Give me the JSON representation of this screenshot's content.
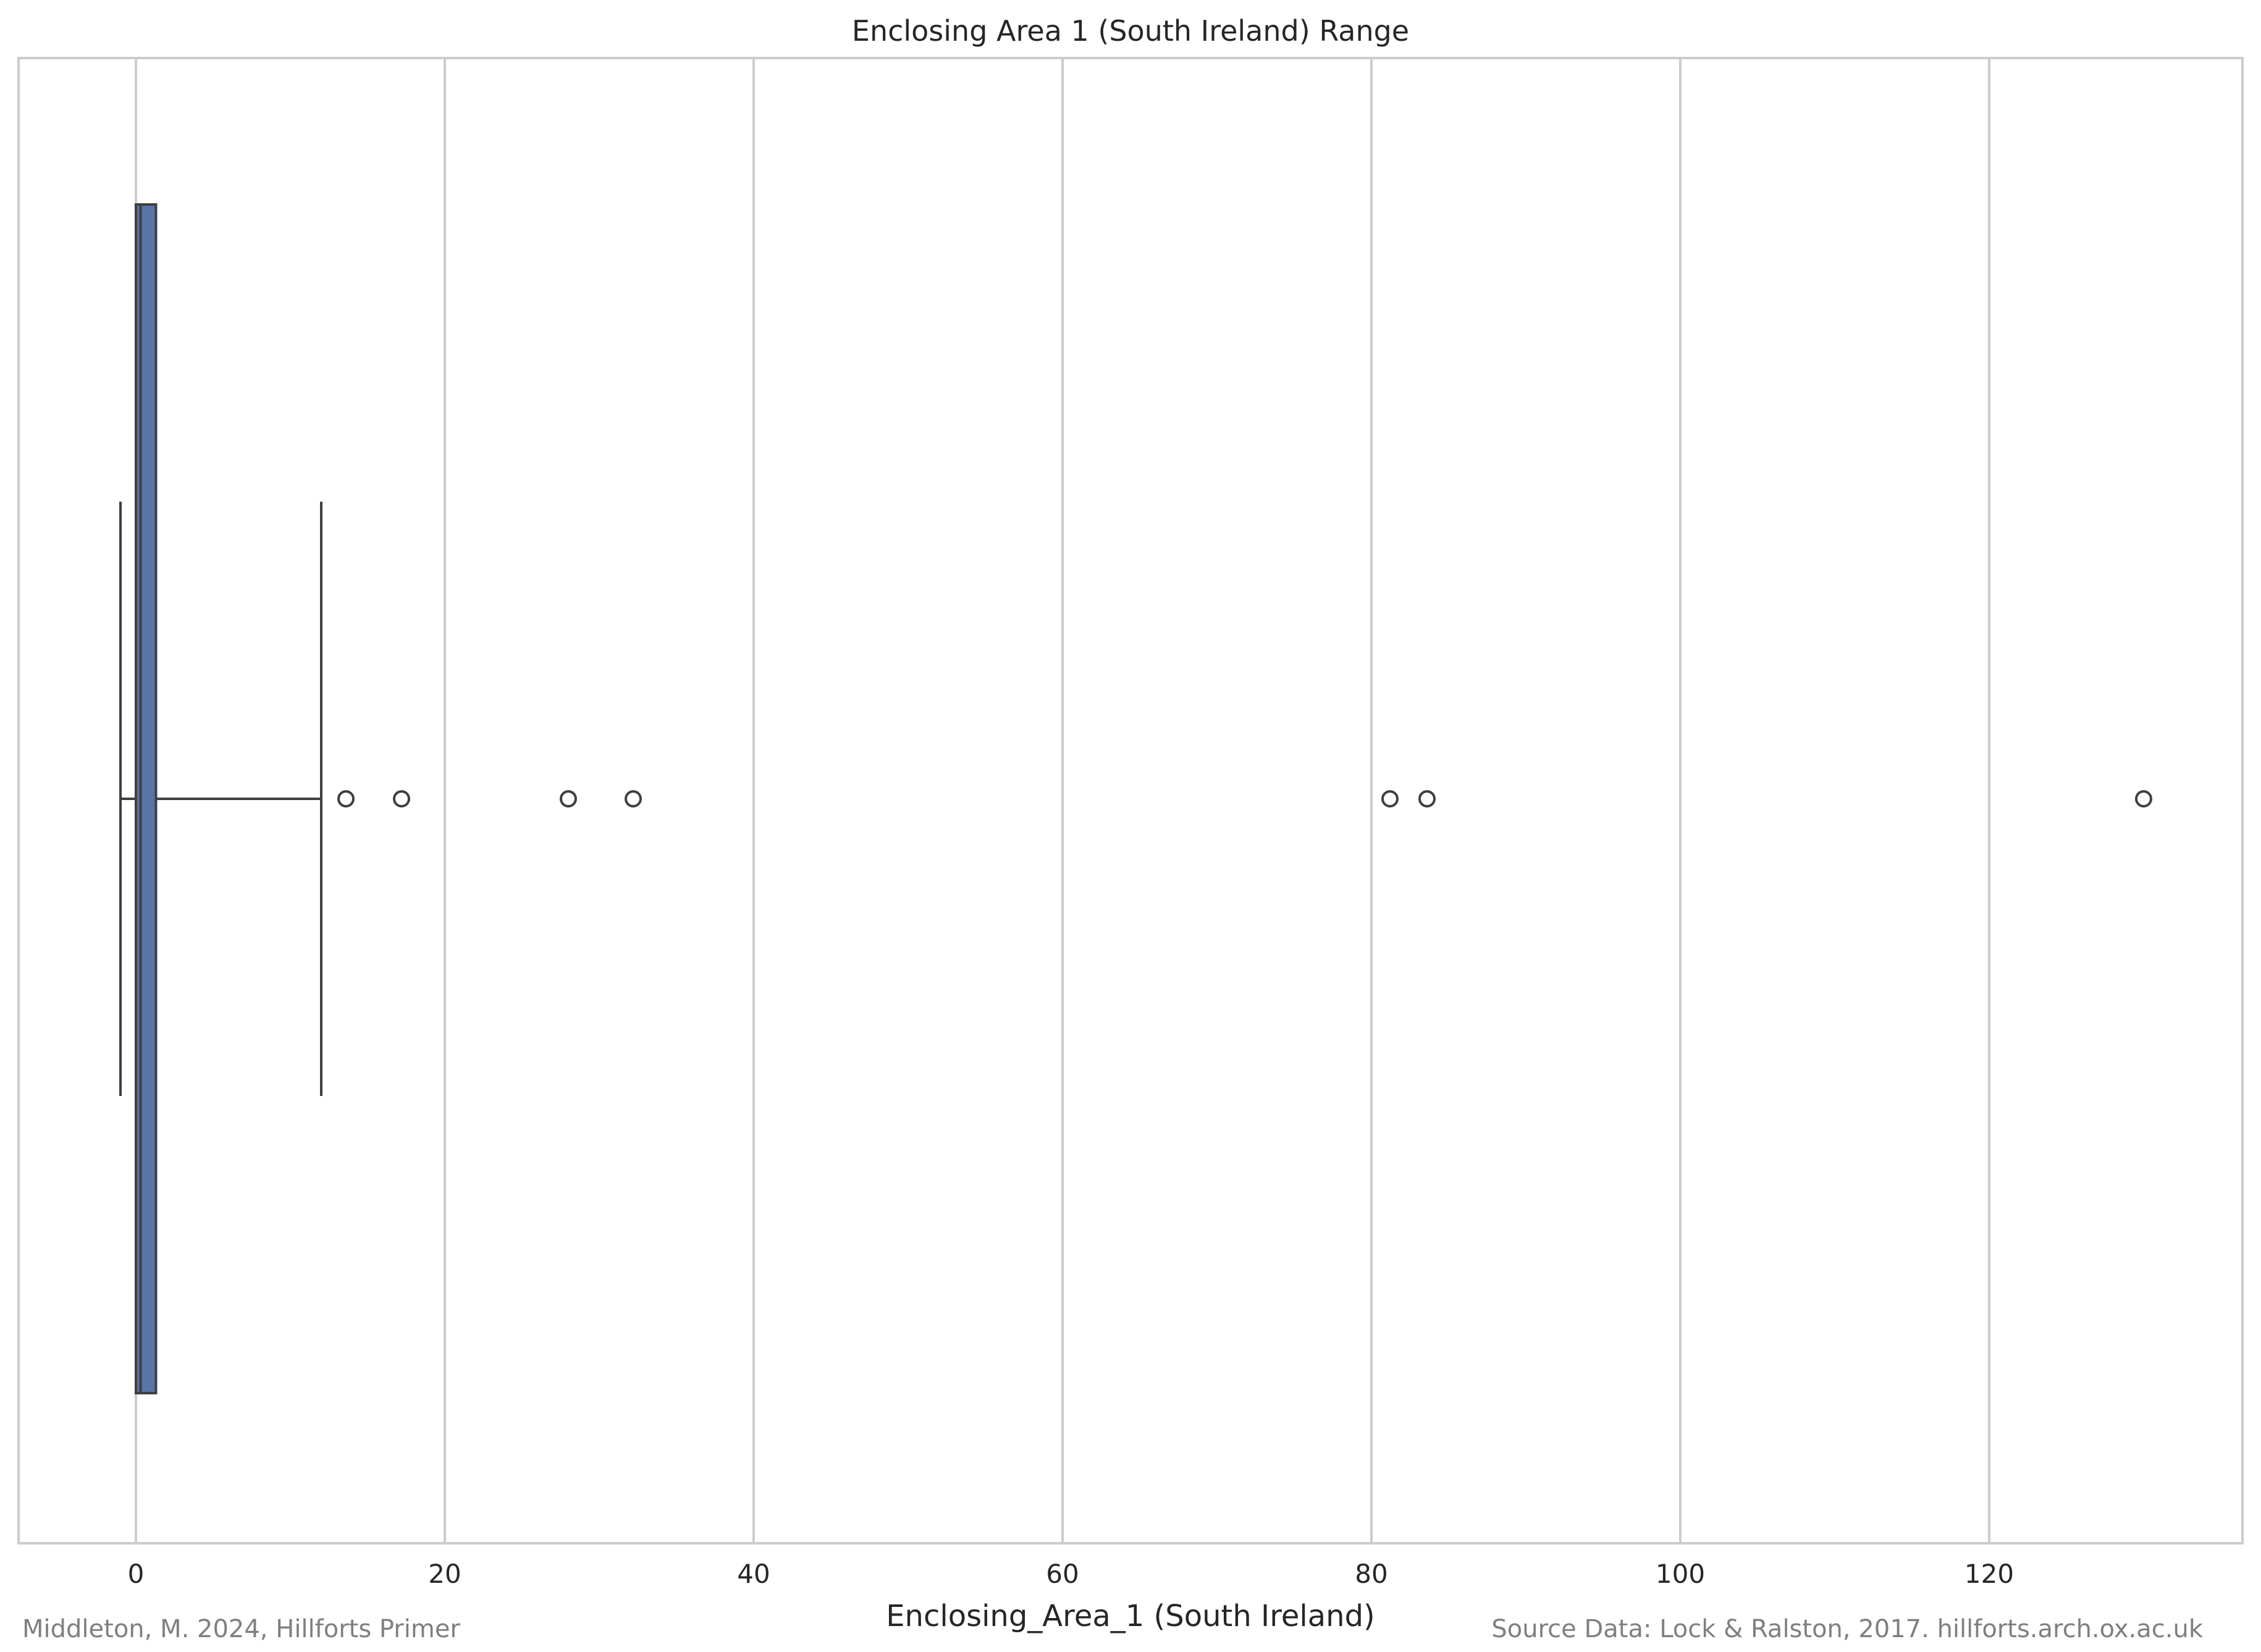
{
  "chart_data": {
    "type": "box",
    "orientation": "horizontal",
    "title": "Enclosing Area 1 (South Ireland) Range",
    "xlabel": "Enclosing_Area_1 (South Ireland)",
    "ylabel": "",
    "xlim": [
      -7.6,
      136.4
    ],
    "xticks": [
      0,
      20,
      40,
      60,
      80,
      100,
      120
    ],
    "xtick_labels": [
      "0",
      "20",
      "40",
      "60",
      "80",
      "100",
      "120"
    ],
    "grid": "vertical",
    "box": {
      "whisker_low": -1.0,
      "q1": 0.0,
      "median": 0.3,
      "q3": 1.3,
      "whisker_high": 12.0,
      "outliers": [
        13.6,
        17.2,
        28.0,
        32.2,
        81.2,
        83.6,
        130.0
      ]
    },
    "colors": {
      "box_fill": "#5975a4",
      "line": "#3f3f3f",
      "grid": "#cccccc",
      "frame": "#cccccc"
    }
  },
  "footer": {
    "left": "Middleton, M. 2024, Hillforts Primer",
    "right": "Source Data: Lock & Ralston, 2017. hillforts.arch.ox.ac.uk"
  }
}
